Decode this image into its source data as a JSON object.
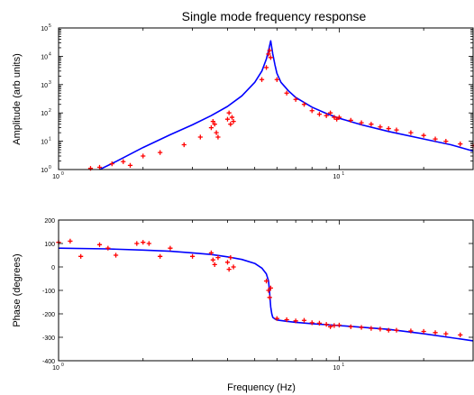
{
  "chart_data": [
    {
      "type": "line",
      "title": "Single mode frequency response",
      "xlabel": "",
      "ylabel": "Amplitude (arb units)",
      "x_scale": "log",
      "y_scale": "log",
      "xlim": [
        1,
        30
      ],
      "ylim": [
        1,
        100000
      ],
      "x_ticks": [
        {
          "base": "10",
          "exp": "0",
          "value": 1
        },
        {
          "base": "10",
          "exp": "1",
          "value": 10
        }
      ],
      "y_ticks": [
        {
          "base": "10",
          "exp": "0",
          "value": 1
        },
        {
          "base": "10",
          "exp": "1",
          "value": 10
        },
        {
          "base": "10",
          "exp": "2",
          "value": 100
        },
        {
          "base": "10",
          "exp": "3",
          "value": 1000
        },
        {
          "base": "10",
          "exp": "4",
          "value": 10000
        },
        {
          "base": "10",
          "exp": "5",
          "value": 100000
        }
      ],
      "series": [
        {
          "style": "line",
          "color": "#0000ff",
          "x": [
            1.4,
            1.6,
            2.0,
            2.5,
            3.0,
            3.5,
            4.0,
            4.5,
            5.0,
            5.3,
            5.5,
            5.6,
            5.7,
            5.8,
            5.9,
            6.0,
            6.2,
            6.6,
            7.0,
            8.0,
            9.0,
            10.0,
            12.0,
            15.0,
            20.0,
            25.0,
            30.0
          ],
          "y": [
            1.0,
            1.9,
            6.0,
            17.0,
            38.0,
            80.0,
            170.0,
            400.0,
            1200.0,
            3000.0,
            8000.0,
            16000.0,
            35000.0,
            12000.0,
            5000.0,
            2500.0,
            1200.0,
            600.0,
            350.0,
            160.0,
            95.0,
            65.0,
            38.0,
            22.0,
            12.0,
            7.5,
            4.5
          ]
        },
        {
          "style": "markers",
          "color": "#ff0000",
          "x": [
            1.3,
            1.4,
            1.55,
            1.7,
            1.8,
            2.0,
            2.3,
            2.8,
            3.2,
            3.5,
            3.55,
            3.6,
            3.65,
            3.7,
            4.0,
            4.05,
            4.1,
            4.15,
            4.2,
            5.3,
            5.5,
            5.6,
            5.65,
            5.7,
            6.0,
            6.5,
            7.0,
            7.5,
            8.0,
            8.5,
            9.0,
            9.3,
            9.6,
            9.8,
            10.0,
            11.0,
            12.0,
            13.0,
            14.0,
            15.0,
            16.0,
            18.0,
            20.0,
            22.0,
            24.0,
            27.0,
            30.0
          ],
          "y": [
            1.1,
            1.2,
            1.6,
            1.9,
            1.4,
            3.0,
            4.0,
            7.5,
            14.0,
            30.0,
            50.0,
            40.0,
            20.0,
            14.0,
            60.0,
            100.0,
            40.0,
            70.0,
            50.0,
            1500.0,
            4000.0,
            12000.0,
            16000.0,
            9000.0,
            1500.0,
            500.0,
            300.0,
            200.0,
            120.0,
            90.0,
            80.0,
            100.0,
            70.0,
            60.0,
            70.0,
            55.0,
            45.0,
            40.0,
            32.0,
            28.0,
            25.0,
            20.0,
            16.0,
            12.0,
            10.0,
            8.0,
            7.0
          ]
        }
      ]
    },
    {
      "type": "line",
      "title": "",
      "xlabel": "Frequency (Hz)",
      "ylabel": "Phase (degrees)",
      "x_scale": "log",
      "y_scale": "linear",
      "xlim": [
        1,
        30
      ],
      "ylim": [
        -400,
        200
      ],
      "x_ticks": [
        {
          "base": "10",
          "exp": "0",
          "value": 1
        },
        {
          "base": "10",
          "exp": "1",
          "value": 10
        }
      ],
      "y_ticks": [
        "200",
        "100",
        "0",
        "-100",
        "-200",
        "-300",
        "-400"
      ],
      "series": [
        {
          "style": "line",
          "color": "#0000ff",
          "x": [
            1.0,
            1.5,
            2.0,
            2.5,
            3.0,
            3.5,
            4.0,
            4.5,
            5.0,
            5.3,
            5.5,
            5.6,
            5.65,
            5.7,
            5.75,
            5.8,
            5.9,
            6.0,
            6.5,
            7.0,
            8.0,
            10.0,
            15.0,
            20.0,
            30.0
          ],
          "y": [
            80.0,
            77.0,
            72.0,
            67.0,
            60.0,
            53.0,
            43.0,
            32.0,
            15.0,
            -5.0,
            -30.0,
            -60.0,
            -110.0,
            -170.0,
            -200.0,
            -215.0,
            -222.0,
            -226.0,
            -232.0,
            -236.0,
            -242.0,
            -250.0,
            -266.0,
            -285.0,
            -315.0
          ]
        },
        {
          "style": "markers",
          "color": "#ff0000",
          "x": [
            1.0,
            1.1,
            1.2,
            1.4,
            1.5,
            1.6,
            1.9,
            2.0,
            2.1,
            2.3,
            2.5,
            3.0,
            3.5,
            3.55,
            3.6,
            3.7,
            4.0,
            4.05,
            4.1,
            4.2,
            5.5,
            5.6,
            5.65,
            5.7,
            6.0,
            6.5,
            7.0,
            7.5,
            8.0,
            8.5,
            9.0,
            9.3,
            9.6,
            10.0,
            11.0,
            12.0,
            13.0,
            14.0,
            15.0,
            16.0,
            18.0,
            20.0,
            22.0,
            24.0,
            27.0
          ],
          "y": [
            105.0,
            110.0,
            45.0,
            95.0,
            80.0,
            50.0,
            100.0,
            105.0,
            100.0,
            45.0,
            80.0,
            45.0,
            60.0,
            30.0,
            10.0,
            40.0,
            20.0,
            -10.0,
            40.0,
            0.0,
            -60.0,
            -100.0,
            -130.0,
            -90.0,
            -220.0,
            -225.0,
            -230.0,
            -228.0,
            -238.0,
            -240.0,
            -245.0,
            -255.0,
            -250.0,
            -248.0,
            -255.0,
            -258.0,
            -262.0,
            -265.0,
            -270.0,
            -270.0,
            -273.0,
            -275.0,
            -280.0,
            -285.0,
            -290.0
          ]
        }
      ]
    }
  ]
}
